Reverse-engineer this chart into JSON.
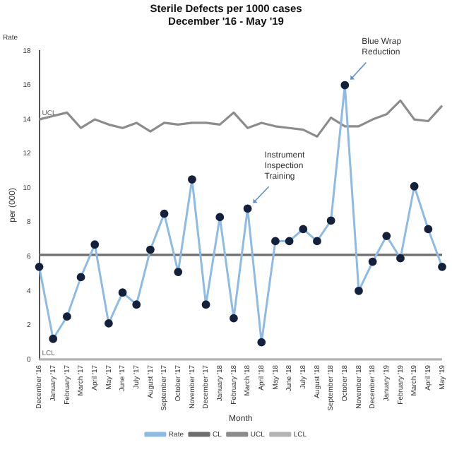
{
  "chart_data": {
    "type": "line",
    "title": "Sterile Defects per 1000 cases",
    "subtitle": "December '16 - May '19",
    "xlabel": "Month",
    "ylabel": "per (000)",
    "categories": [
      "December '16",
      "January '17",
      "February '17",
      "March '17",
      "April '17",
      "May '17",
      "June '17",
      "July '17",
      "August '17",
      "September '17",
      "October '17",
      "November '17",
      "December '17",
      "January '18",
      "February '18",
      "March '18",
      "April '18",
      "May '18",
      "June '18",
      "July '18",
      "August '18",
      "September '18",
      "October '18",
      "November '18",
      "December '18",
      "January '19",
      "February '19",
      "March '19",
      "April '19",
      "May '19"
    ],
    "series": [
      {
        "name": "Rate",
        "color": "#8dbbe6",
        "marker": "circle",
        "values": [
          5.4,
          1.2,
          2.5,
          4.8,
          6.7,
          2.1,
          3.9,
          3.2,
          6.4,
          8.5,
          5.1,
          10.5,
          3.2,
          8.3,
          2.4,
          8.8,
          1.0,
          6.9,
          6.9,
          7.6,
          6.9,
          8.1,
          16.0,
          4.0,
          5.7,
          7.2,
          5.9,
          10.1,
          7.6,
          5.4
        ]
      },
      {
        "name": "CL",
        "color": "#6e6e6e",
        "marker": "none",
        "values": [
          6.1,
          6.1,
          6.1,
          6.1,
          6.1,
          6.1,
          6.1,
          6.1,
          6.1,
          6.1,
          6.1,
          6.1,
          6.1,
          6.1,
          6.1,
          6.1,
          6.1,
          6.1,
          6.1,
          6.1,
          6.1,
          6.1,
          6.1,
          6.1,
          6.1,
          6.1,
          6.1,
          6.1,
          6.1,
          6.1
        ]
      },
      {
        "name": "UCL",
        "color": "#8c8c8c",
        "marker": "none",
        "values": [
          14.0,
          14.2,
          14.4,
          13.5,
          14.0,
          13.7,
          13.5,
          13.8,
          13.3,
          13.8,
          13.7,
          13.8,
          13.8,
          13.7,
          14.4,
          13.5,
          13.8,
          13.6,
          13.5,
          13.4,
          13.0,
          14.1,
          13.6,
          13.6,
          14.0,
          14.3,
          15.1,
          14.0,
          13.9,
          14.8
        ]
      },
      {
        "name": "LCL",
        "color": "#b4b4b4",
        "marker": "none",
        "values": [
          0,
          0,
          0,
          0,
          0,
          0,
          0,
          0,
          0,
          0,
          0,
          0,
          0,
          0,
          0,
          0,
          0,
          0,
          0,
          0,
          0,
          0,
          0,
          0,
          0,
          0,
          0,
          0,
          0,
          0
        ]
      }
    ],
    "ylim": [
      0,
      18
    ],
    "yticks": [
      0,
      2,
      4,
      6,
      8,
      10,
      12,
      14,
      16,
      18
    ],
    "grid": false,
    "legend": "bottom",
    "annotations": [
      "Rate",
      {
        "text": "UCL",
        "x": "December '16",
        "y": 14.0
      },
      {
        "text": "LCL",
        "x": "December '16",
        "y": 0
      },
      {
        "text": "Blue Wrap Reduction",
        "x": "October '18",
        "y": 16.0
      },
      {
        "text": "Instrument Inspection Training",
        "x": "March '18",
        "y": 8.8
      }
    ]
  }
}
